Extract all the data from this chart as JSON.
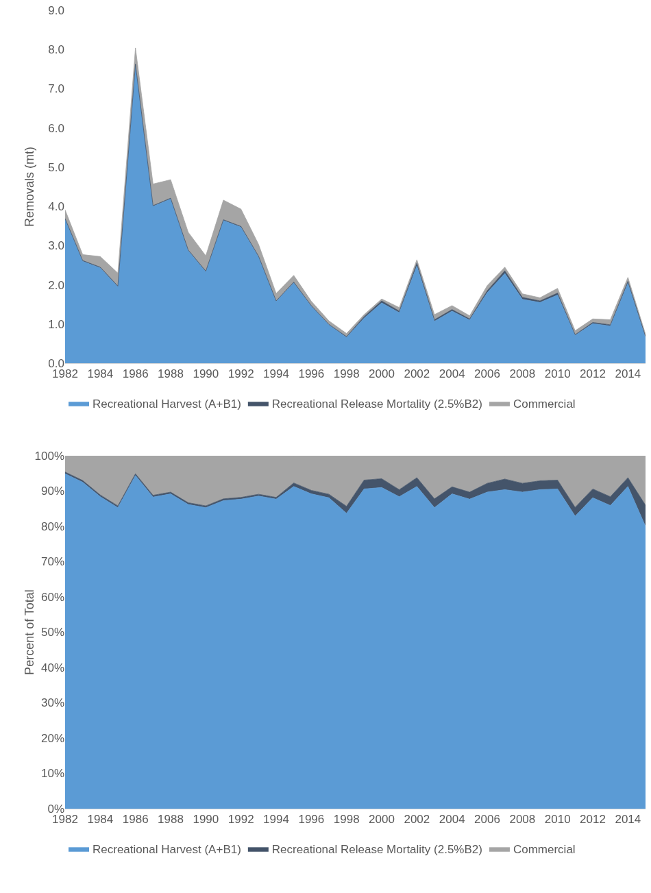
{
  "chart_data": [
    {
      "type": "area",
      "stacked": true,
      "ylabel": "Removals (mt)",
      "x": [
        1982,
        1983,
        1984,
        1985,
        1986,
        1987,
        1988,
        1989,
        1990,
        1991,
        1992,
        1993,
        1994,
        1995,
        1996,
        1997,
        1998,
        1999,
        2000,
        2001,
        2002,
        2003,
        2004,
        2005,
        2006,
        2007,
        2008,
        2009,
        2010,
        2011,
        2012,
        2013,
        2014,
        2015
      ],
      "series": [
        {
          "name": "Recreational Harvest (A+B1)",
          "color": "#5b9bd5",
          "values": [
            3.67,
            2.6,
            2.43,
            1.95,
            7.6,
            4.0,
            4.19,
            2.87,
            2.33,
            3.64,
            3.47,
            2.71,
            1.58,
            2.05,
            1.45,
            0.98,
            0.66,
            1.15,
            1.54,
            1.29,
            2.48,
            1.07,
            1.33,
            1.1,
            1.8,
            2.29,
            1.63,
            1.55,
            1.74,
            0.71,
            1.01,
            0.95,
            2.04,
            0.65
          ]
        },
        {
          "name": "Recreational Release Mortality (2.5%B2)",
          "color": "#44546a",
          "values": [
            0.02,
            0.02,
            0.02,
            0.02,
            0.03,
            0.02,
            0.02,
            0.02,
            0.02,
            0.02,
            0.02,
            0.02,
            0.01,
            0.02,
            0.02,
            0.01,
            0.02,
            0.04,
            0.05,
            0.04,
            0.07,
            0.04,
            0.04,
            0.03,
            0.05,
            0.07,
            0.05,
            0.04,
            0.05,
            0.02,
            0.03,
            0.03,
            0.05,
            0.04
          ]
        },
        {
          "name": "Commercial",
          "color": "#a5a5a5",
          "values": [
            0.22,
            0.15,
            0.27,
            0.33,
            0.41,
            0.55,
            0.47,
            0.45,
            0.39,
            0.5,
            0.44,
            0.3,
            0.19,
            0.17,
            0.11,
            0.09,
            0.08,
            0.05,
            0.05,
            0.09,
            0.09,
            0.13,
            0.1,
            0.08,
            0.13,
            0.09,
            0.09,
            0.08,
            0.12,
            0.1,
            0.09,
            0.13,
            0.1,
            0.05
          ]
        }
      ],
      "xlim": [
        1982,
        2015
      ],
      "xticks": [
        1982,
        1984,
        1986,
        1988,
        1990,
        1992,
        1994,
        1996,
        1998,
        2000,
        2002,
        2004,
        2006,
        2008,
        2010,
        2012,
        2014
      ],
      "ylim": [
        0,
        9
      ],
      "yticks": [
        {
          "value": 0,
          "label": "0.0"
        },
        {
          "value": 1,
          "label": "1.0"
        },
        {
          "value": 2,
          "label": "2.0"
        },
        {
          "value": 3,
          "label": "3.0"
        },
        {
          "value": 4,
          "label": "4.0"
        },
        {
          "value": 5,
          "label": "5.0"
        },
        {
          "value": 6,
          "label": "6.0"
        },
        {
          "value": 7,
          "label": "7.0"
        },
        {
          "value": 8,
          "label": "8.0"
        },
        {
          "value": 9,
          "label": "9.0"
        }
      ],
      "grid": false,
      "legend": "bottom"
    },
    {
      "type": "area",
      "stacked": true,
      "ylabel": "Percent of Total",
      "x": [
        1982,
        1983,
        1984,
        1985,
        1986,
        1987,
        1988,
        1989,
        1990,
        1991,
        1992,
        1993,
        1994,
        1995,
        1996,
        1997,
        1998,
        1999,
        2000,
        2001,
        2002,
        2003,
        2004,
        2005,
        2006,
        2007,
        2008,
        2009,
        2010,
        2011,
        2012,
        2013,
        2014,
        2015
      ],
      "series": [
        {
          "name": "Recreational Harvest (A+B1)",
          "color": "#5b9bd5",
          "values": [
            94.9,
            92.5,
            88.4,
            85.3,
            94.4,
            88.3,
            89.2,
            86.2,
            85.3,
            87.3,
            87.7,
            88.6,
            87.7,
            91.3,
            89.2,
            88.1,
            83.7,
            90.6,
            91.0,
            88.4,
            91.3,
            85.3,
            89.2,
            87.7,
            89.7,
            90.4,
            89.7,
            90.4,
            90.6,
            82.9,
            88.1,
            85.9,
            91.3,
            80.0
          ]
        },
        {
          "name": "Recreational Release Mortality (2.5%B2)",
          "color": "#44546a",
          "values": [
            0.5,
            0.5,
            0.5,
            0.5,
            0.5,
            0.5,
            0.5,
            0.5,
            0.5,
            0.5,
            0.5,
            0.5,
            0.5,
            1.0,
            1.0,
            1.0,
            2.0,
            2.5,
            2.5,
            2.0,
            2.5,
            2.5,
            2.0,
            2.0,
            2.5,
            3.0,
            2.5,
            2.5,
            2.5,
            2.5,
            2.5,
            2.5,
            2.5,
            6.0
          ]
        },
        {
          "name": "Commercial",
          "color": "#a5a5a5",
          "values": [
            4.6,
            7.0,
            11.1,
            14.2,
            5.1,
            11.2,
            10.3,
            13.3,
            14.2,
            12.2,
            11.8,
            10.9,
            11.8,
            7.7,
            9.8,
            10.9,
            14.3,
            6.9,
            6.5,
            9.6,
            6.2,
            12.2,
            8.8,
            10.3,
            7.8,
            6.6,
            7.8,
            7.1,
            6.9,
            14.6,
            9.4,
            11.6,
            6.2,
            14.0
          ]
        }
      ],
      "xlim": [
        1982,
        2015
      ],
      "xticks": [
        1982,
        1984,
        1986,
        1988,
        1990,
        1992,
        1994,
        1996,
        1998,
        2000,
        2002,
        2004,
        2006,
        2008,
        2010,
        2012,
        2014
      ],
      "ylim": [
        0,
        100
      ],
      "yticks": [
        {
          "value": 0,
          "label": "0%"
        },
        {
          "value": 10,
          "label": "10%"
        },
        {
          "value": 20,
          "label": "20%"
        },
        {
          "value": 30,
          "label": "30%"
        },
        {
          "value": 40,
          "label": "40%"
        },
        {
          "value": 50,
          "label": "50%"
        },
        {
          "value": 60,
          "label": "60%"
        },
        {
          "value": 70,
          "label": "70%"
        },
        {
          "value": 80,
          "label": "80%"
        },
        {
          "value": 90,
          "label": "90%"
        },
        {
          "value": 100,
          "label": "100%"
        }
      ],
      "grid": false,
      "legend": "bottom"
    }
  ]
}
